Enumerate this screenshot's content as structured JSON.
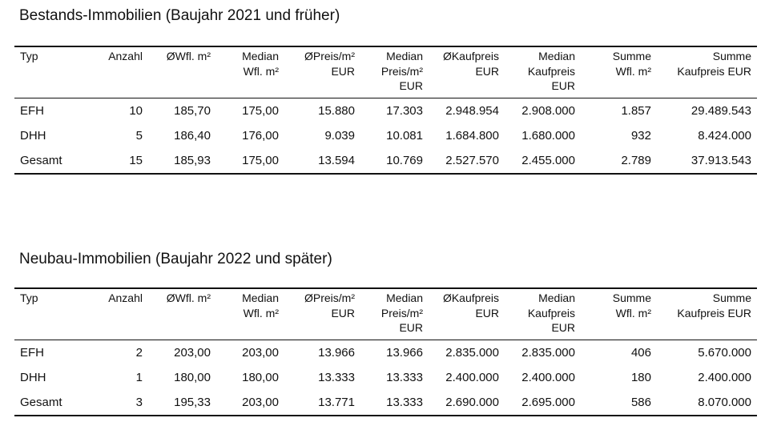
{
  "sections": [
    {
      "title": "Bestands-Immobilien (Baujahr 2021 und früher)",
      "headers": [
        [
          "Typ"
        ],
        [
          "Anzahl"
        ],
        [
          "ØWfl. m²"
        ],
        [
          "Median",
          "Wfl. m²"
        ],
        [
          "ØPreis/m²",
          "EUR"
        ],
        [
          "Median",
          "Preis/m²",
          "EUR"
        ],
        [
          "ØKaufpreis",
          "EUR"
        ],
        [
          "Median",
          "Kaufpreis",
          "EUR"
        ],
        [
          "Summe",
          "Wfl. m²"
        ],
        [
          "Summe",
          "Kaufpreis EUR"
        ]
      ],
      "rows": [
        [
          "EFH",
          "10",
          "185,70",
          "175,00",
          "15.880",
          "17.303",
          "2.948.954",
          "2.908.000",
          "1.857",
          "29.489.543"
        ],
        [
          "DHH",
          "5",
          "186,40",
          "176,00",
          "9.039",
          "10.081",
          "1.684.800",
          "1.680.000",
          "932",
          "8.424.000"
        ],
        [
          "Gesamt",
          "15",
          "185,93",
          "175,00",
          "13.594",
          "10.769",
          "2.527.570",
          "2.455.000",
          "2.789",
          "37.913.543"
        ]
      ]
    },
    {
      "title": "Neubau-Immobilien (Baujahr 2022 und später)",
      "headers": [
        [
          "Typ"
        ],
        [
          "Anzahl"
        ],
        [
          "ØWfl. m²"
        ],
        [
          "Median",
          "Wfl. m²"
        ],
        [
          "ØPreis/m²",
          "EUR"
        ],
        [
          "Median",
          "Preis/m²",
          "EUR"
        ],
        [
          "ØKaufpreis",
          "EUR"
        ],
        [
          "Median",
          "Kaufpreis",
          "EUR"
        ],
        [
          "Summe",
          "Wfl. m²"
        ],
        [
          "Summe",
          "Kaufpreis EUR"
        ]
      ],
      "rows": [
        [
          "EFH",
          "2",
          "203,00",
          "203,00",
          "13.966",
          "13.966",
          "2.835.000",
          "2.835.000",
          "406",
          "5.670.000"
        ],
        [
          "DHH",
          "1",
          "180,00",
          "180,00",
          "13.333",
          "13.333",
          "2.400.000",
          "2.400.000",
          "180",
          "2.400.000"
        ],
        [
          "Gesamt",
          "3",
          "195,33",
          "203,00",
          "13.771",
          "13.333",
          "2.690.000",
          "2.695.000",
          "586",
          "8.070.000"
        ]
      ]
    }
  ]
}
